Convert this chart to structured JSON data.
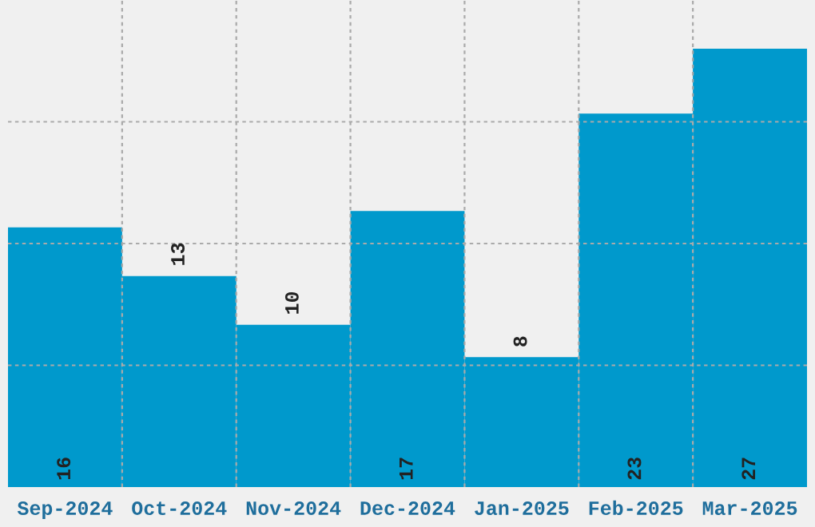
{
  "chart_data": {
    "type": "bar",
    "categories": [
      "Sep-2024",
      "Oct-2024",
      "Nov-2024",
      "Dec-2024",
      "Jan-2025",
      "Feb-2025",
      "Mar-2025"
    ],
    "values": [
      16,
      13,
      10,
      17,
      8,
      23,
      27
    ],
    "color": "#0099cc",
    "ylim": [
      0,
      30
    ],
    "yticks": [
      {
        "value": 7.5,
        "label": null
      },
      {
        "value": 15,
        "label": null
      },
      {
        "value": 22.5,
        "label": null
      }
    ],
    "grid": true,
    "tick_labels": "x",
    "data_labels": true
  }
}
